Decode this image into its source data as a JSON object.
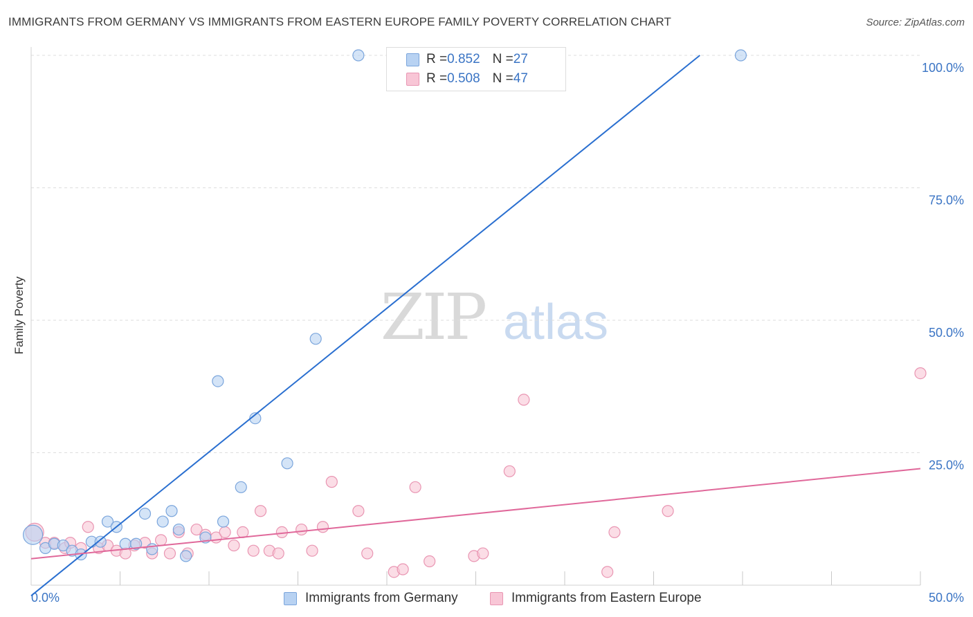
{
  "title": "IMMIGRANTS FROM GERMANY VS IMMIGRANTS FROM EASTERN EUROPE FAMILY POVERTY CORRELATION CHART",
  "source": "Source: ZipAtlas.com",
  "watermark": {
    "zip": "ZIP",
    "atlas": "atlas"
  },
  "colors": {
    "blue_fill": "#b8d2f2",
    "blue_stroke": "#7aa5dc",
    "blue_line": "#2a6fd0",
    "pink_fill": "#f8c6d6",
    "pink_stroke": "#e995b2",
    "pink_line": "#e0689a",
    "tick_label": "#3a74c4",
    "grid": "#dddddd"
  },
  "legend_top": {
    "rows": [
      {
        "r_label": "R = ",
        "r_value": "0.852",
        "n_label": "N = ",
        "n_value": "27"
      },
      {
        "r_label": "R = ",
        "r_value": "0.508",
        "n_label": "N = ",
        "n_value": "47"
      }
    ]
  },
  "chart_data": {
    "type": "scatter",
    "title": "IMMIGRANTS FROM GERMANY VS IMMIGRANTS FROM EASTERN EUROPE FAMILY POVERTY CORRELATION CHART",
    "xlabel": "",
    "ylabel": "Family Poverty",
    "xlim": [
      0,
      50
    ],
    "ylim": [
      0,
      100
    ],
    "x_tick_labels": [
      "0.0%",
      "50.0%"
    ],
    "y_ticks": [
      25,
      50,
      75,
      100
    ],
    "y_tick_labels": [
      "25.0%",
      "50.0%",
      "75.0%",
      "100.0%"
    ],
    "grid": true,
    "legend_position": "bottom",
    "series": [
      {
        "name": "Immigrants from Germany",
        "color": "#7aa5dc",
        "r": 0.852,
        "n": 27,
        "trend": {
          "x": [
            0,
            37.6
          ],
          "y": [
            -2.0,
            100
          ]
        },
        "points": [
          [
            0.1,
            9.5
          ],
          [
            0.8,
            7.0
          ],
          [
            1.3,
            7.8
          ],
          [
            1.8,
            7.5
          ],
          [
            2.3,
            6.5
          ],
          [
            2.8,
            5.8
          ],
          [
            3.4,
            8.2
          ],
          [
            3.9,
            8.2
          ],
          [
            4.3,
            12.0
          ],
          [
            4.8,
            11.0
          ],
          [
            5.3,
            7.8
          ],
          [
            5.9,
            7.8
          ],
          [
            6.4,
            13.5
          ],
          [
            6.8,
            6.8
          ],
          [
            7.4,
            12.0
          ],
          [
            7.9,
            14.0
          ],
          [
            8.3,
            10.5
          ],
          [
            8.7,
            5.5
          ],
          [
            9.8,
            9.0
          ],
          [
            10.5,
            38.5
          ],
          [
            10.8,
            12.0
          ],
          [
            11.8,
            18.5
          ],
          [
            12.6,
            31.5
          ],
          [
            14.4,
            23.0
          ],
          [
            16.0,
            46.5
          ],
          [
            18.4,
            100
          ],
          [
            39.9,
            100
          ]
        ]
      },
      {
        "name": "Immigrants from Eastern Europe",
        "color": "#e995b2",
        "r": 0.508,
        "n": 47,
        "trend": {
          "x": [
            0,
            50
          ],
          "y": [
            5.0,
            22.0
          ]
        },
        "points": [
          [
            0.2,
            10.0
          ],
          [
            0.8,
            8.0
          ],
          [
            1.3,
            8.0
          ],
          [
            1.9,
            7.0
          ],
          [
            2.2,
            8.0
          ],
          [
            2.8,
            7.0
          ],
          [
            3.2,
            11.0
          ],
          [
            3.8,
            7.0
          ],
          [
            4.3,
            7.5
          ],
          [
            4.8,
            6.5
          ],
          [
            5.3,
            6.0
          ],
          [
            5.8,
            7.5
          ],
          [
            6.4,
            8.0
          ],
          [
            6.8,
            6.0
          ],
          [
            7.3,
            8.5
          ],
          [
            7.8,
            6.0
          ],
          [
            8.3,
            10.0
          ],
          [
            8.8,
            6.0
          ],
          [
            9.3,
            10.5
          ],
          [
            9.8,
            9.5
          ],
          [
            10.4,
            9.0
          ],
          [
            10.9,
            10.0
          ],
          [
            11.4,
            7.5
          ],
          [
            11.9,
            10.0
          ],
          [
            12.5,
            6.5
          ],
          [
            12.9,
            14.0
          ],
          [
            13.4,
            6.5
          ],
          [
            13.9,
            6.0
          ],
          [
            14.1,
            10.0
          ],
          [
            15.2,
            10.5
          ],
          [
            15.8,
            6.5
          ],
          [
            16.4,
            11.0
          ],
          [
            16.9,
            19.5
          ],
          [
            18.4,
            14.0
          ],
          [
            18.9,
            6.0
          ],
          [
            20.4,
            2.5
          ],
          [
            20.9,
            3.0
          ],
          [
            21.6,
            18.5
          ],
          [
            22.4,
            4.5
          ],
          [
            24.9,
            5.5
          ],
          [
            25.4,
            6.0
          ],
          [
            26.9,
            21.5
          ],
          [
            27.7,
            35.0
          ],
          [
            32.8,
            10.0
          ],
          [
            32.4,
            2.5
          ],
          [
            35.8,
            14.0
          ],
          [
            50.0,
            40.0
          ]
        ]
      }
    ]
  },
  "legend_bottom": {
    "items": [
      {
        "label": "Immigrants from Germany"
      },
      {
        "label": "Immigrants from Eastern Europe"
      }
    ]
  }
}
